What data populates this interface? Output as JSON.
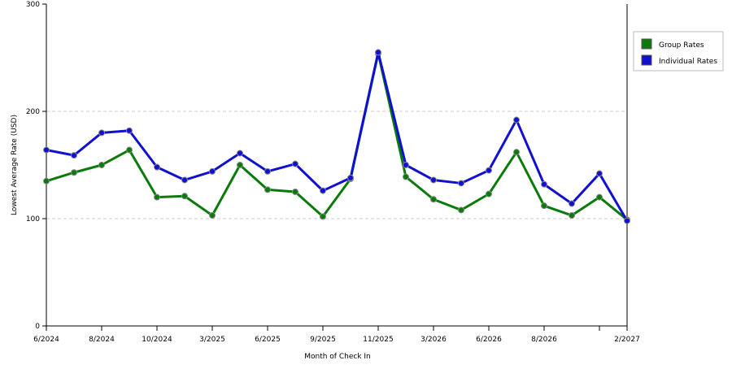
{
  "chart_data": {
    "type": "line",
    "x_label": "Month of Check In",
    "y_label": "Lowest Average Rate (USD)",
    "categories": [
      "6/2024",
      null,
      "8/2024",
      null,
      "10/2024",
      null,
      "3/2025",
      null,
      "6/2025",
      null,
      "9/2025",
      null,
      "11/2025",
      null,
      "3/2026",
      null,
      "6/2026",
      null,
      "8/2026",
      null,
      null,
      "2/2027"
    ],
    "series": [
      {
        "name": "Group Rates",
        "color": "#0a7a0a",
        "values": [
          135,
          143,
          150,
          164,
          120,
          121,
          103,
          150,
          127,
          125,
          102,
          137,
          254,
          139,
          118,
          108,
          123,
          162,
          112,
          103,
          120,
          99
        ]
      },
      {
        "name": "Individual Rates",
        "color": "#1010d0",
        "values": [
          164,
          159,
          180,
          182,
          148,
          136,
          144,
          161,
          144,
          151,
          126,
          138,
          255,
          150,
          136,
          133,
          145,
          192,
          132,
          114,
          142,
          98
        ]
      }
    ],
    "ylim": [
      0,
      300
    ],
    "yticks": [
      0,
      100,
      200,
      300
    ],
    "grid": true,
    "legend": "right"
  }
}
